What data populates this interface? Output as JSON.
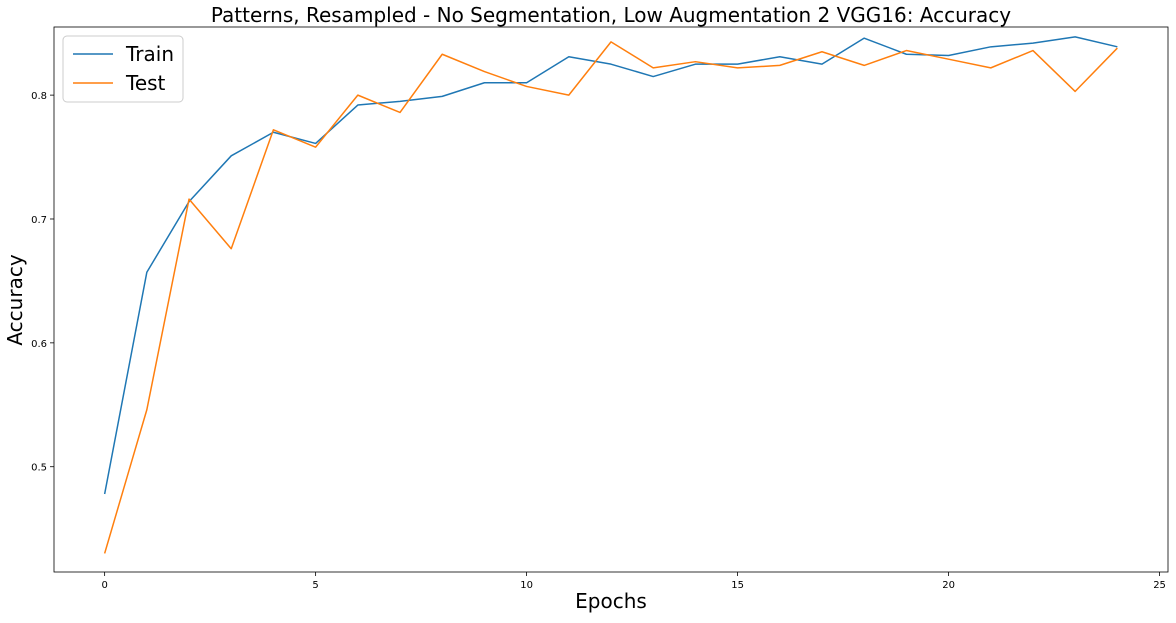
{
  "chart_data": {
    "type": "line",
    "title": "Patterns, Resampled - No Segmentation, Low Augmentation 2 VGG16: Accuracy",
    "xlabel": "Epochs",
    "ylabel": "Accuracy",
    "xlim": [
      -1.2,
      25.2
    ],
    "ylim": [
      0.415,
      0.855
    ],
    "xticks": [
      0,
      5,
      10,
      15,
      20,
      25
    ],
    "yticks": [
      0.5,
      0.6,
      0.7,
      0.8
    ],
    "legend_position": "upper-left",
    "grid": false,
    "x": [
      0,
      1,
      2,
      3,
      4,
      5,
      6,
      7,
      8,
      9,
      10,
      11,
      12,
      13,
      14,
      15,
      16,
      17,
      18,
      19,
      20,
      21,
      22,
      23,
      24
    ],
    "series": [
      {
        "name": "Train",
        "color": "#1f77b4",
        "values": [
          0.478,
          0.657,
          0.714,
          0.751,
          0.77,
          0.761,
          0.792,
          0.795,
          0.799,
          0.81,
          0.81,
          0.831,
          0.825,
          0.815,
          0.825,
          0.825,
          0.831,
          0.825,
          0.846,
          0.833,
          0.832,
          0.839,
          0.842,
          0.847,
          0.839
        ]
      },
      {
        "name": "Test",
        "color": "#ff7f0e",
        "values": [
          0.43,
          0.546,
          0.716,
          0.676,
          0.772,
          0.758,
          0.8,
          0.786,
          0.833,
          0.819,
          0.807,
          0.8,
          0.843,
          0.822,
          0.827,
          0.822,
          0.824,
          0.835,
          0.824,
          0.836,
          0.829,
          0.822,
          0.836,
          0.803,
          0.838
        ]
      }
    ]
  }
}
